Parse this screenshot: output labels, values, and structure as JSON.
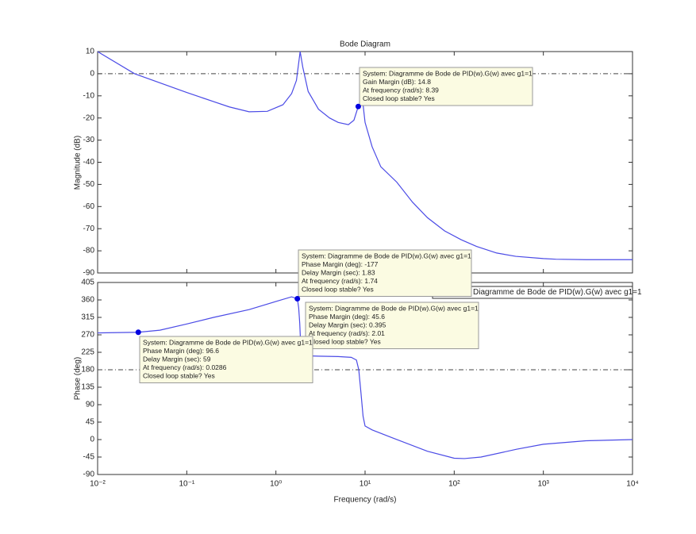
{
  "chart_data": [
    {
      "type": "line",
      "title": "Bode Diagram",
      "ylabel": "Magnitude (dB)",
      "xscale": "log",
      "xlim": [
        0.01,
        10000
      ],
      "xticks": [
        {
          "value": 0.01,
          "label": "10⁻²"
        },
        {
          "value": 0.1,
          "label": "10⁻¹"
        },
        {
          "value": 1,
          "label": "10⁰"
        },
        {
          "value": 10,
          "label": "10¹"
        },
        {
          "value": 100,
          "label": "10²"
        },
        {
          "value": 1000,
          "label": "10³"
        },
        {
          "value": 10000,
          "label": "10⁴"
        }
      ],
      "show_xtick_labels": false,
      "ylim": [
        -90,
        10
      ],
      "yticks": [
        10,
        0,
        -10,
        -20,
        -30,
        -40,
        -50,
        -60,
        -70,
        -80,
        -90
      ],
      "reference_line": 0,
      "x": [
        0.01,
        0.026,
        0.1,
        0.3,
        0.5,
        0.8,
        1.2,
        1.5,
        1.7,
        1.87,
        2.0,
        2.3,
        3,
        4,
        5,
        6.5,
        7.5,
        8.39,
        9,
        9.5,
        10,
        12,
        15,
        22.7,
        34,
        50,
        78,
        120,
        178,
        300,
        490,
        1000,
        1380,
        3000,
        10000
      ],
      "series": [
        {
          "color": "#4b4be6",
          "values": [
            10,
            0,
            -8.5,
            -15,
            -17.2,
            -17,
            -14,
            -9,
            -3,
            10,
            3,
            -8,
            -16,
            -20,
            -22,
            -23,
            -21,
            -14.8,
            -13,
            -14,
            -22,
            -33,
            -42,
            -49,
            -58,
            -65,
            -71,
            -75,
            -78,
            -81,
            -82.5,
            -83.5,
            -83.8,
            -84,
            -84
          ]
        }
      ],
      "datatips": [
        {
          "x": 8.39,
          "y": -14.8,
          "lines": [
            "System: Diagramme de Bode de PID(w).G(w) avec g1=1",
            "Gain Margin (dB): 14.8",
            "At frequency (rad/s): 8.39",
            "Closed loop stable? Yes"
          ]
        }
      ]
    },
    {
      "type": "line",
      "ylabel": "Phase (deg)",
      "xlabel": "Frequency  (rad/s)",
      "xscale": "log",
      "xlim": [
        0.01,
        10000
      ],
      "xticks": [
        {
          "value": 0.01,
          "label": "10⁻²"
        },
        {
          "value": 0.1,
          "label": "10⁻¹"
        },
        {
          "value": 1,
          "label": "10⁰"
        },
        {
          "value": 10,
          "label": "10¹"
        },
        {
          "value": 100,
          "label": "10²"
        },
        {
          "value": 1000,
          "label": "10³"
        },
        {
          "value": 10000,
          "label": "10⁴"
        }
      ],
      "show_xtick_labels": true,
      "ylim": [
        -90,
        405
      ],
      "yticks": [
        405,
        360,
        315,
        270,
        225,
        180,
        135,
        90,
        45,
        0,
        -45,
        -90
      ],
      "reference_line": 180,
      "legend": "upper right",
      "x": [
        0.01,
        0.0286,
        0.05,
        0.1,
        0.2,
        0.5,
        1,
        1.5,
        1.74,
        1.8,
        1.85,
        1.9,
        2.01,
        2.2,
        3,
        5,
        7,
        8,
        8.5,
        9,
        9.5,
        10,
        12,
        20,
        50,
        100,
        130,
        200,
        500,
        1000,
        3000,
        10000
      ],
      "series": [
        {
          "name": "Diagramme de Bode de PID(w).G(w) avec g1=1",
          "color": "#4b4be6",
          "values": [
            275,
            276.6,
            282,
            298,
            315,
            335,
            356,
            368,
            363,
            340,
            300,
            240,
            225.6,
            216,
            215,
            214,
            212,
            205,
            180,
            120,
            60,
            35,
            25,
            5,
            -30,
            -48,
            -49,
            -45,
            -25,
            -12,
            -3,
            0
          ]
        }
      ],
      "datatips": [
        {
          "x": 1.74,
          "y": 363,
          "lines": [
            "System: Diagramme de Bode de PID(w).G(w) avec g1=1",
            "Phase Margin (deg): -177",
            "Delay Margin (sec): 1.83",
            "At frequency (rad/s): 1.74",
            "Closed loop stable? Yes"
          ]
        },
        {
          "x": 2.01,
          "y": 225.6,
          "lines": [
            "System: Diagramme de Bode de PID(w).G(w) avec g1=1",
            "Phase Margin (deg): 45.6",
            "Delay Margin (sec): 0.395",
            "At frequency (rad/s): 2.01",
            "Closed loop stable? Yes"
          ]
        },
        {
          "x": 0.0286,
          "y": 276.6,
          "lines": [
            "System: Diagramme de Bode de PID(w).G(w) avec g1=1",
            "Phase Margin (deg): 96.6",
            "Delay Margin (sec): 59",
            "At frequency (rad/s): 0.0286",
            "Closed loop stable? Yes"
          ]
        }
      ]
    }
  ]
}
